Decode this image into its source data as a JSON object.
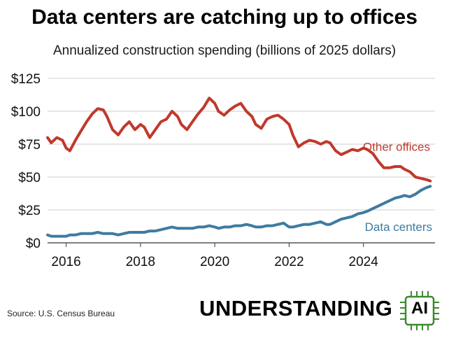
{
  "title": "Data centers are catching up to offices",
  "subtitle": "Annualized construction spending (billions of 2025 dollars)",
  "source": "Source: U.S. Census Bureau",
  "brand": {
    "word": "UNDERSTANDING",
    "chip_label": "AI",
    "chip_color": "#3c8a2e"
  },
  "chart_data": {
    "type": "line",
    "x_unit": "year",
    "xlim": [
      2015.5,
      2025.85
    ],
    "ylim": [
      0,
      125
    ],
    "x_ticks": [
      2016,
      2018,
      2020,
      2022,
      2024
    ],
    "x_tick_labels": [
      "2016",
      "2018",
      "2020",
      "2022",
      "2024"
    ],
    "y_ticks": [
      0,
      25,
      50,
      75,
      100,
      125
    ],
    "y_tick_labels": [
      "$0",
      "$25",
      "$50",
      "$75",
      "$100",
      "$125"
    ],
    "grid": "horizontal",
    "legend": "inline labels at right",
    "series": [
      {
        "name": "Other offices",
        "color": "#c0392b",
        "x": [
          2015.5,
          2015.6,
          2015.75,
          2015.9,
          2016.0,
          2016.1,
          2016.25,
          2016.4,
          2016.55,
          2016.7,
          2016.85,
          2017.0,
          2017.1,
          2017.25,
          2017.4,
          2017.55,
          2017.7,
          2017.85,
          2018.0,
          2018.1,
          2018.25,
          2018.4,
          2018.55,
          2018.7,
          2018.85,
          2019.0,
          2019.1,
          2019.25,
          2019.4,
          2019.55,
          2019.7,
          2019.85,
          2020.0,
          2020.1,
          2020.25,
          2020.4,
          2020.55,
          2020.7,
          2020.85,
          2021.0,
          2021.1,
          2021.25,
          2021.4,
          2021.55,
          2021.7,
          2021.85,
          2022.0,
          2022.1,
          2022.25,
          2022.4,
          2022.55,
          2022.7,
          2022.85,
          2023.0,
          2023.1,
          2023.25,
          2023.4,
          2023.55,
          2023.7,
          2023.85,
          2024.0,
          2024.1,
          2024.25,
          2024.4,
          2024.55,
          2024.7,
          2024.85,
          2025.0,
          2025.1,
          2025.25,
          2025.4,
          2025.55,
          2025.7,
          2025.8
        ],
        "values": [
          80,
          76,
          80,
          78,
          72,
          70,
          78,
          85,
          92,
          98,
          102,
          101,
          96,
          86,
          82,
          88,
          92,
          86,
          90,
          88,
          80,
          86,
          92,
          94,
          100,
          96,
          90,
          86,
          92,
          98,
          103,
          110,
          106,
          100,
          97,
          101,
          104,
          106,
          100,
          96,
          90,
          87,
          94,
          96,
          97,
          94,
          90,
          82,
          73,
          76,
          78,
          77,
          75,
          77,
          76,
          70,
          67,
          69,
          71,
          70,
          72,
          71,
          68,
          62,
          57,
          57,
          58,
          58,
          56,
          54,
          50,
          49,
          48,
          47
        ]
      },
      {
        "name": "Data centers",
        "color": "#3e7ba0",
        "x": [
          2015.5,
          2015.6,
          2015.75,
          2015.9,
          2016.0,
          2016.1,
          2016.25,
          2016.4,
          2016.55,
          2016.7,
          2016.85,
          2017.0,
          2017.1,
          2017.25,
          2017.4,
          2017.55,
          2017.7,
          2017.85,
          2018.0,
          2018.1,
          2018.25,
          2018.4,
          2018.55,
          2018.7,
          2018.85,
          2019.0,
          2019.1,
          2019.25,
          2019.4,
          2019.55,
          2019.7,
          2019.85,
          2020.0,
          2020.1,
          2020.25,
          2020.4,
          2020.55,
          2020.7,
          2020.85,
          2021.0,
          2021.1,
          2021.25,
          2021.4,
          2021.55,
          2021.7,
          2021.85,
          2022.0,
          2022.1,
          2022.25,
          2022.4,
          2022.55,
          2022.7,
          2022.85,
          2023.0,
          2023.1,
          2023.25,
          2023.4,
          2023.55,
          2023.7,
          2023.85,
          2024.0,
          2024.1,
          2024.25,
          2024.4,
          2024.55,
          2024.7,
          2024.85,
          2025.0,
          2025.1,
          2025.25,
          2025.4,
          2025.55,
          2025.7,
          2025.8
        ],
        "values": [
          6,
          5,
          5,
          5,
          5,
          6,
          6,
          7,
          7,
          7,
          8,
          7,
          7,
          7,
          6,
          7,
          8,
          8,
          8,
          8,
          9,
          9,
          10,
          11,
          12,
          11,
          11,
          11,
          11,
          12,
          12,
          13,
          12,
          11,
          12,
          12,
          13,
          13,
          14,
          13,
          12,
          12,
          13,
          13,
          14,
          15,
          12,
          12,
          13,
          14,
          14,
          15,
          16,
          14,
          14,
          16,
          18,
          19,
          20,
          22,
          23,
          24,
          26,
          28,
          30,
          32,
          34,
          35,
          36,
          35,
          37,
          40,
          42,
          43
        ]
      }
    ]
  }
}
